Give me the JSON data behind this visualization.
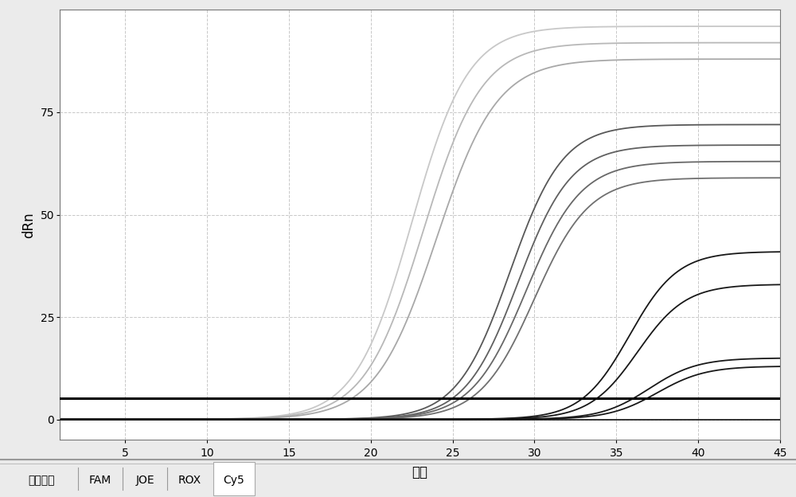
{
  "xlabel": "循环",
  "ylabel": "dRn",
  "xlim": [
    1,
    45
  ],
  "ylim": [
    -5,
    100
  ],
  "xticks": [
    5,
    10,
    15,
    20,
    25,
    30,
    35,
    40,
    45
  ],
  "yticks": [
    0,
    25,
    50,
    75
  ],
  "threshold_y": 5.2,
  "background_color": "#ebebeb",
  "plot_bg_color": "#ffffff",
  "grid_color": "#c8c8c8",
  "grid_style": "--",
  "tab_labels": [
    "所有通道",
    "FAM",
    "JOE",
    "ROX",
    "Cy5"
  ],
  "tab_selected": "Cy5",
  "curves": [
    {
      "color": "#c8c8c8",
      "midpoint": 22.5,
      "L": 96,
      "k": 0.58,
      "lw": 1.3
    },
    {
      "color": "#b8b8b8",
      "midpoint": 23.2,
      "L": 92,
      "k": 0.56,
      "lw": 1.3
    },
    {
      "color": "#a8a8a8",
      "midpoint": 24.0,
      "L": 88,
      "k": 0.54,
      "lw": 1.3
    },
    {
      "color": "#585858",
      "midpoint": 28.5,
      "L": 72,
      "k": 0.62,
      "lw": 1.3
    },
    {
      "color": "#606060",
      "midpoint": 29.0,
      "L": 67,
      "k": 0.62,
      "lw": 1.3
    },
    {
      "color": "#686868",
      "midpoint": 29.5,
      "L": 63,
      "k": 0.6,
      "lw": 1.3
    },
    {
      "color": "#707070",
      "midpoint": 30.0,
      "L": 59,
      "k": 0.6,
      "lw": 1.3
    },
    {
      "color": "#181818",
      "midpoint": 35.8,
      "L": 41,
      "k": 0.68,
      "lw": 1.3
    },
    {
      "color": "#181818",
      "midpoint": 36.3,
      "L": 33,
      "k": 0.68,
      "lw": 1.3
    },
    {
      "color": "#181818",
      "midpoint": 37.0,
      "L": 15,
      "k": 0.68,
      "lw": 1.3
    },
    {
      "color": "#181818",
      "midpoint": 37.5,
      "L": 13,
      "k": 0.68,
      "lw": 1.3
    }
  ],
  "axis_label_fontsize": 12,
  "tick_fontsize": 10,
  "tab_fontsize": 10
}
